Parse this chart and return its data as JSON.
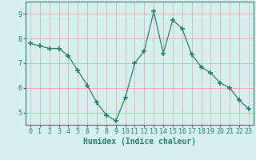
{
  "xlabel": "Humidex (Indice chaleur)",
  "x": [
    0,
    1,
    2,
    3,
    4,
    5,
    6,
    7,
    8,
    9,
    10,
    11,
    12,
    13,
    14,
    15,
    16,
    17,
    18,
    19,
    20,
    21,
    22,
    23
  ],
  "y": [
    7.8,
    7.7,
    7.6,
    7.6,
    7.3,
    6.7,
    6.1,
    5.4,
    4.9,
    4.65,
    5.6,
    7.0,
    7.5,
    9.1,
    7.4,
    8.75,
    8.4,
    7.35,
    6.85,
    6.6,
    6.2,
    6.0,
    5.5,
    5.15
  ],
  "line_color": "#2a7d6e",
  "bg_color": "#d6f0ee",
  "grid_color": "#e8aaaa",
  "tick_color": "#2a7d6e",
  "label_color": "#2a7d6e",
  "ylim": [
    4.5,
    9.5
  ],
  "yticks": [
    5,
    6,
    7,
    8,
    9
  ],
  "xticks": [
    0,
    1,
    2,
    3,
    4,
    5,
    6,
    7,
    8,
    9,
    10,
    11,
    12,
    13,
    14,
    15,
    16,
    17,
    18,
    19,
    20,
    21,
    22,
    23
  ],
  "tick_fontsize": 6.0,
  "xlabel_fontsize": 7.0
}
